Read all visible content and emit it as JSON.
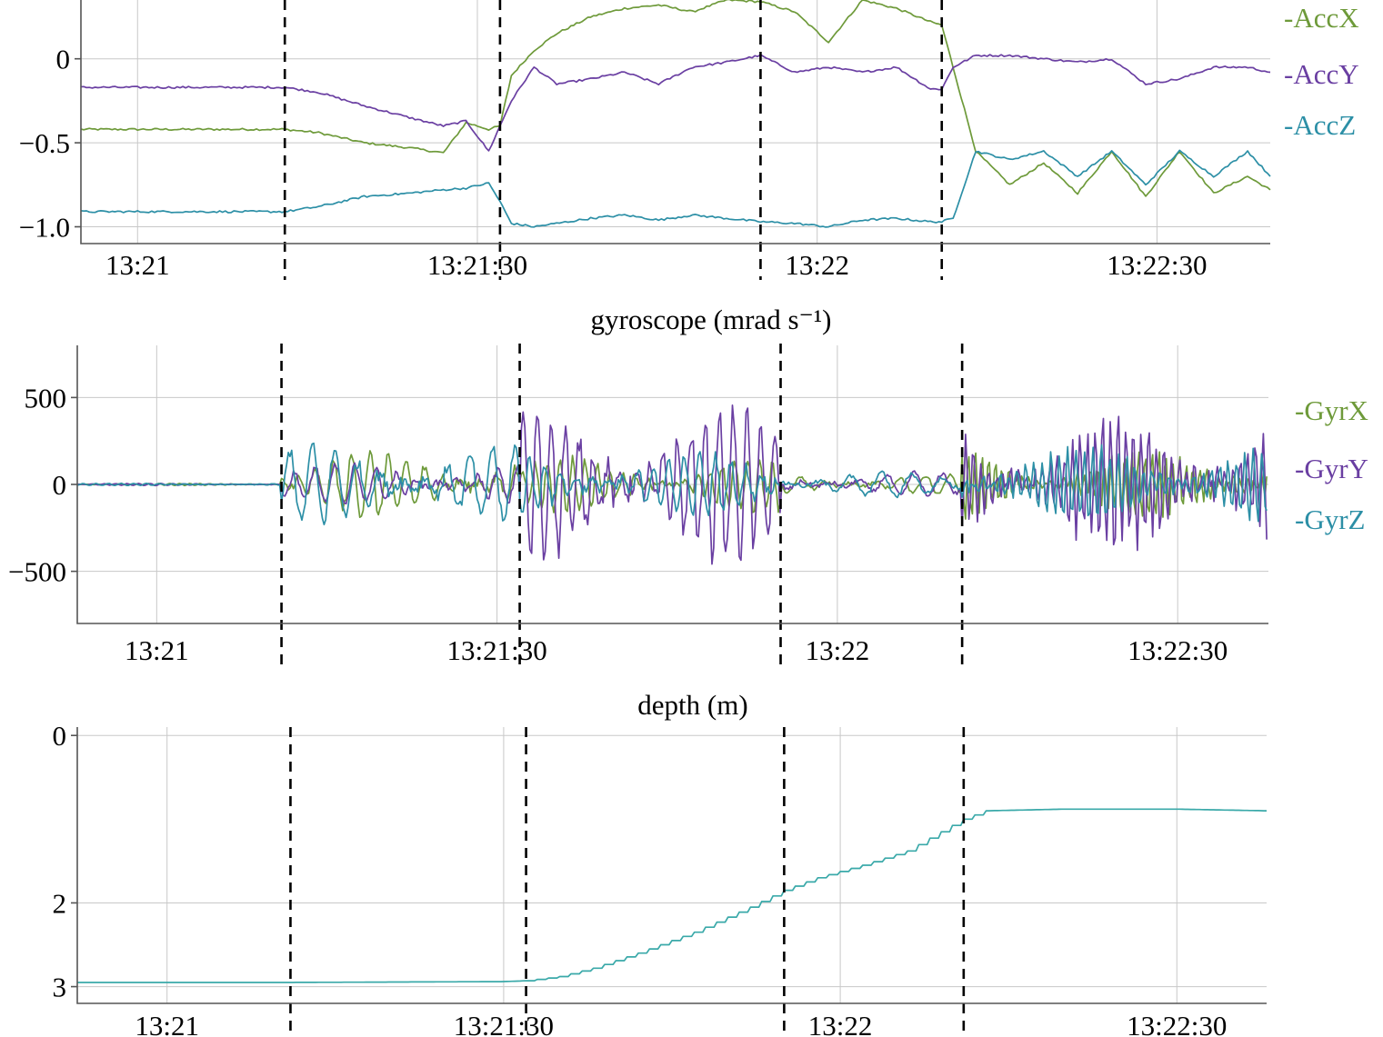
{
  "chart_data": [
    {
      "type": "line",
      "title": "",
      "xlabel": "",
      "ylabel": "",
      "x_unit": "time (hh:mm:ss)",
      "xlim": [
        "13:20:55",
        "13:22:40"
      ],
      "ylim": [
        -1.1,
        0.35
      ],
      "yticks": [
        {
          "value": 0,
          "label": "0"
        },
        {
          "value": -0.5,
          "label": "−0.5"
        },
        {
          "value": -1.0,
          "label": "−1.0"
        }
      ],
      "xticks": [
        {
          "value": "13:21:00",
          "label": "13:21"
        },
        {
          "value": "13:21:30",
          "label": "13:21:30"
        },
        {
          "value": "13:22:00",
          "label": "13:22"
        },
        {
          "value": "13:22:30",
          "label": "13:22:30"
        }
      ],
      "grid": true,
      "legend_position": "right",
      "event_markers": [
        "13:21:13",
        "13:21:32",
        "13:21:55",
        "13:22:11"
      ],
      "x": [
        "13:20:55",
        "13:21:13",
        "13:21:16",
        "13:21:20",
        "13:21:24",
        "13:21:27",
        "13:21:29",
        "13:21:31",
        "13:21:32",
        "13:21:33",
        "13:21:35",
        "13:21:37",
        "13:21:40",
        "13:21:43",
        "13:21:46",
        "13:21:49",
        "13:21:52",
        "13:21:55",
        "13:21:58",
        "13:22:01",
        "13:22:04",
        "13:22:07",
        "13:22:10",
        "13:22:11",
        "13:22:12",
        "13:22:14",
        "13:22:17",
        "13:22:20",
        "13:22:23",
        "13:22:26",
        "13:22:29",
        "13:22:32",
        "13:22:35",
        "13:22:38",
        "13:22:40"
      ],
      "series": [
        {
          "name": "-AccX",
          "color": "#6e9a3a",
          "values": [
            -0.42,
            -0.42,
            -0.44,
            -0.5,
            -0.53,
            -0.56,
            -0.38,
            -0.42,
            -0.4,
            -0.1,
            0.05,
            0.15,
            0.25,
            0.3,
            0.32,
            0.28,
            0.35,
            0.34,
            0.28,
            0.1,
            0.35,
            0.3,
            0.22,
            0.2,
            -0.05,
            -0.55,
            -0.75,
            -0.62,
            -0.8,
            -0.55,
            -0.82,
            -0.55,
            -0.8,
            -0.7,
            -0.78
          ]
        },
        {
          "name": "-AccY",
          "color": "#6a3fa2",
          "values": [
            -0.17,
            -0.17,
            -0.2,
            -0.28,
            -0.35,
            -0.4,
            -0.37,
            -0.55,
            -0.4,
            -0.25,
            -0.05,
            -0.15,
            -0.12,
            -0.08,
            -0.15,
            -0.05,
            -0.02,
            0.02,
            -0.08,
            -0.05,
            -0.08,
            -0.05,
            -0.18,
            -0.18,
            -0.05,
            0.02,
            0.02,
            0.0,
            -0.02,
            0.0,
            -0.15,
            -0.12,
            -0.05,
            -0.05,
            -0.08
          ]
        },
        {
          "name": "-AccZ",
          "color": "#2c8fa6",
          "values": [
            -0.91,
            -0.91,
            -0.88,
            -0.82,
            -0.8,
            -0.78,
            -0.77,
            -0.74,
            -0.85,
            -0.98,
            -1.0,
            -0.98,
            -0.95,
            -0.93,
            -0.96,
            -0.93,
            -0.95,
            -0.97,
            -0.98,
            -1.0,
            -0.96,
            -0.95,
            -0.97,
            -0.97,
            -0.95,
            -0.55,
            -0.6,
            -0.55,
            -0.7,
            -0.55,
            -0.75,
            -0.55,
            -0.7,
            -0.55,
            -0.7
          ]
        }
      ]
    },
    {
      "type": "line",
      "title": "gyroscope (mrad s⁻¹)",
      "xlabel": "",
      "ylabel": "",
      "x_unit": "time (hh:mm:ss)",
      "xlim": [
        "13:20:53",
        "13:22:38"
      ],
      "ylim": [
        -800,
        800
      ],
      "yticks": [
        {
          "value": 500,
          "label": "500"
        },
        {
          "value": 0,
          "label": "0"
        },
        {
          "value": -500,
          "label": "−500"
        }
      ],
      "xticks": [
        {
          "value": "13:21:00",
          "label": "13:21"
        },
        {
          "value": "13:21:30",
          "label": "13:21:30"
        },
        {
          "value": "13:22:00",
          "label": "13:22"
        },
        {
          "value": "13:22:30",
          "label": "13:22:30"
        }
      ],
      "grid": true,
      "legend_position": "right",
      "event_markers": [
        "13:21:11",
        "13:21:32",
        "13:21:55",
        "13:22:11"
      ],
      "segments": [
        {
          "start": "13:20:53",
          "end": "13:21:11",
          "period_s": 0.9,
          "amplitude": {
            "-GyrX": 6,
            "-GyrY": 6,
            "-GyrZ": 6
          }
        },
        {
          "start": "13:21:11",
          "end": "13:21:32",
          "period_s": 1.6,
          "amplitude": {
            "-GyrX": 180,
            "-GyrY": 120,
            "-GyrZ": 220
          }
        },
        {
          "start": "13:21:32",
          "end": "13:21:55",
          "period_s": 1.1,
          "amplitude": {
            "-GyrX": 150,
            "-GyrY": 430,
            "-GyrZ": 180
          }
        },
        {
          "start": "13:21:55",
          "end": "13:22:11",
          "period_s": 2.2,
          "amplitude": {
            "-GyrX": 60,
            "-GyrY": 70,
            "-GyrZ": 70
          }
        },
        {
          "start": "13:22:11",
          "end": "13:22:38",
          "period_s": 0.6,
          "amplitude": {
            "-GyrX": 200,
            "-GyrY": 380,
            "-GyrZ": 220
          }
        }
      ],
      "series": [
        {
          "name": "-GyrX",
          "color": "#6e9a3a"
        },
        {
          "name": "-GyrY",
          "color": "#6a3fa2"
        },
        {
          "name": "-GyrZ",
          "color": "#2c8fa6"
        }
      ]
    },
    {
      "type": "line",
      "title": "depth (m)",
      "xlabel": "",
      "ylabel": "",
      "x_unit": "time (hh:mm:ss)",
      "xlim": [
        "13:20:52",
        "13:22:38"
      ],
      "ylim": [
        3.2,
        -0.1
      ],
      "y_inverted": true,
      "yticks": [
        {
          "value": 0,
          "label": "0"
        },
        {
          "value": 2,
          "label": "2"
        },
        {
          "value": 3,
          "label": "3"
        }
      ],
      "xticks": [
        {
          "value": "13:21:00",
          "label": "13:21"
        },
        {
          "value": "13:21:30",
          "label": "13:21:30"
        },
        {
          "value": "13:22:00",
          "label": "13:22"
        },
        {
          "value": "13:22:30",
          "label": "13:22:30"
        }
      ],
      "grid": true,
      "event_markers": [
        "13:21:11",
        "13:21:32",
        "13:21:55",
        "13:22:11"
      ],
      "series": [
        {
          "color": "#3aa9a9",
          "x": [
            "13:20:52",
            "13:21:11",
            "13:21:30",
            "13:21:32",
            "13:21:35",
            "13:21:38",
            "13:21:42",
            "13:21:47",
            "13:21:52",
            "13:21:55",
            "13:21:58",
            "13:22:02",
            "13:22:06",
            "13:22:09",
            "13:22:11",
            "13:22:13",
            "13:22:20",
            "13:22:30",
            "13:22:38"
          ],
          "values": [
            2.95,
            2.95,
            2.94,
            2.93,
            2.88,
            2.78,
            2.6,
            2.35,
            2.05,
            1.85,
            1.7,
            1.55,
            1.38,
            1.15,
            1.0,
            0.9,
            0.88,
            0.88,
            0.9
          ]
        }
      ]
    }
  ],
  "depth_panel_ylabels": [
    "0",
    "2",
    "3"
  ]
}
